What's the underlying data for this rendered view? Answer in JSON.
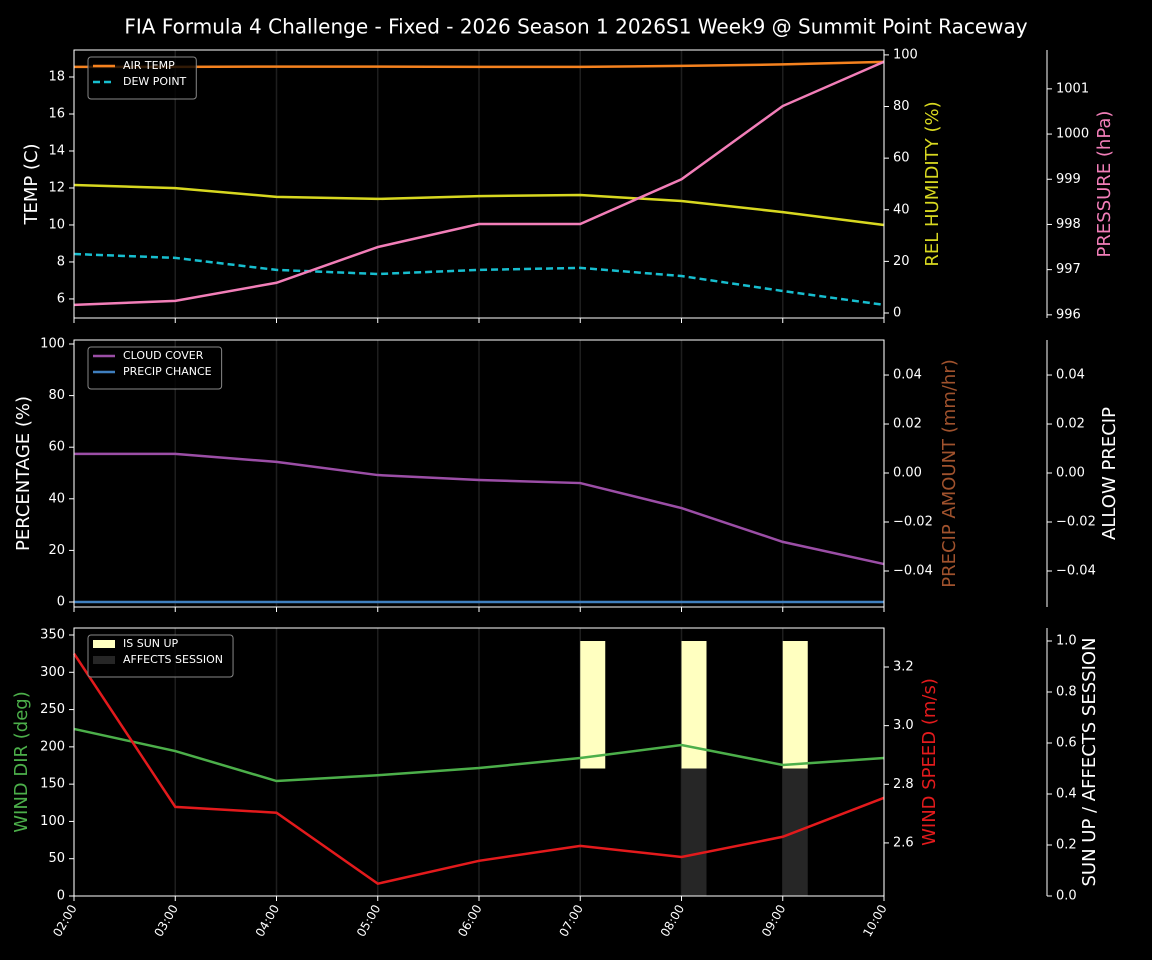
{
  "title": "FIA Formula 4 Challenge - Fixed - 2026 Season 1 2026S1 Week9 @ Summit Point Raceway",
  "chart_data": [
    {
      "type": "line",
      "legend": "upper left",
      "xgrid": true,
      "ylabel": "TEMP (C)",
      "ylabel_color": "#ffffff",
      "ylim": [
        4.97,
        19.46
      ],
      "yticks": [
        6,
        8,
        10,
        12,
        14,
        16,
        18
      ],
      "y2label": "REL HUMIDITY (%)",
      "y2label_color": "#d8d820",
      "y2lim": [
        -1.94,
        101.9
      ],
      "y2ticks": [
        0,
        20,
        40,
        60,
        80,
        100
      ],
      "y3label": "PRESSURE (hPa)",
      "y3label_color": "#f27eb8",
      "y3lim": [
        995.93,
        1001.86
      ],
      "y3ticks": [
        996,
        997,
        998,
        999,
        1000,
        1001
      ],
      "series": [
        {
          "name": "AIR TEMP",
          "color": "#f5821f",
          "linestyle": "solid",
          "values": [
            18.55,
            18.55,
            18.56,
            18.56,
            18.55,
            18.55,
            18.6,
            18.68,
            18.82
          ]
        },
        {
          "name": "DEW POINT",
          "color": "#17becf",
          "linestyle": "dashed",
          "values": [
            8.43,
            8.22,
            7.57,
            7.35,
            7.57,
            7.68,
            7.24,
            6.43,
            5.68
          ]
        },
        {
          "color": "#d8d820",
          "linestyle": "solid",
          "axis": "y2",
          "values": [
            49.6,
            48.4,
            45.0,
            44.2,
            45.3,
            45.7,
            43.4,
            39.1,
            34.1
          ]
        },
        {
          "color": "#f27eb8",
          "linestyle": "solid",
          "axis": "y3",
          "values": [
            996.22,
            996.31,
            996.71,
            997.5,
            998.01,
            998.01,
            999.0,
            1000.62,
            1001.6
          ]
        }
      ]
    },
    {
      "type": "line",
      "legend": "upper left",
      "xgrid": true,
      "ylabel": "PERCENTAGE (%)",
      "ylabel_color": "#ffffff",
      "ylim": [
        -1.94,
        101.55
      ],
      "yticks": [
        0,
        20,
        40,
        60,
        80,
        100
      ],
      "y2label": "PRECIP AMOUNT (mm/hr)",
      "y2label_color": "#a0522d",
      "y2lim": [
        -0.0547,
        0.0543
      ],
      "y2ticks": [
        {
          "value": -0.04,
          "label": "−0.04"
        },
        {
          "value": -0.02,
          "label": "−0.02"
        },
        {
          "value": 0,
          "label": "0.00"
        },
        0.02,
        0.04
      ],
      "y3label": "ALLOW PRECIP",
      "y3label_color": "#ffffff",
      "y3lim": [
        -0.0547,
        0.0543
      ],
      "y3ticks": [
        {
          "value": -0.04,
          "label": "−0.04"
        },
        {
          "value": -0.02,
          "label": "−0.02"
        },
        {
          "value": 0,
          "label": "0.00"
        },
        0.02,
        0.04
      ],
      "series": [
        {
          "name": "CLOUD COVER",
          "color": "#9b4ea6",
          "linestyle": "solid",
          "values": [
            57.4,
            57.4,
            54.3,
            49.2,
            47.3,
            46.1,
            36.4,
            23.3,
            14.7
          ]
        },
        {
          "name": "PRECIP CHANCE",
          "color": "#3f7fbf",
          "linestyle": "solid",
          "values": [
            0,
            0,
            0,
            0,
            0,
            0,
            0,
            0,
            0
          ]
        }
      ]
    },
    {
      "type": "combo",
      "legend": "upper left",
      "xgrid": true,
      "categories": [
        "02:00",
        "03:00",
        "04:00",
        "05:00",
        "06:00",
        "07:00",
        "08:00",
        "09:00",
        "10:00"
      ],
      "ylabel": "WIND DIR (deg)",
      "ylabel_color": "#4caf4a",
      "ylim": [
        0,
        359.4
      ],
      "yticks": [
        0,
        50,
        100,
        150,
        200,
        250,
        300,
        350
      ],
      "y2label": "WIND SPEED (m/s)",
      "y2label_color": "#e31a1c",
      "y2lim": [
        2.419,
        3.333
      ],
      "y2ticks": [
        2.6,
        2.8,
        {
          "value": 3,
          "label": "3.0"
        },
        3.2
      ],
      "y3label": "SUN UP / AFFECTS SESSION",
      "y3label_color": "#ffffff",
      "y3lim": [
        0,
        1.051
      ],
      "y3ticks": [
        {
          "value": 0,
          "label": "0.0"
        },
        0.2,
        0.4,
        0.6,
        0.8,
        {
          "value": 1,
          "label": "1.0"
        }
      ],
      "series": [
        {
          "name": "IS SUN UP",
          "type": "bar",
          "color": "#ffffc0",
          "axis": "y3",
          "bottom": 0.5,
          "values": [
            0,
            0,
            0,
            0,
            0,
            0.5,
            0.5,
            0.5,
            0
          ]
        },
        {
          "name": "AFFECTS SESSION",
          "type": "bar",
          "color": "#262626",
          "axis": "y3",
          "bottom": 0,
          "values": [
            0,
            0,
            0,
            0,
            0,
            0,
            0.5,
            0.5,
            0
          ]
        },
        {
          "type": "line",
          "color": "#4caf4a",
          "linestyle": "solid",
          "values": [
            224,
            194.4,
            154.2,
            162,
            171.6,
            185,
            202.5,
            175.7,
            185
          ]
        },
        {
          "type": "line",
          "color": "#e31a1c",
          "linestyle": "solid",
          "axis": "y2",
          "values": [
            3.246,
            2.723,
            2.703,
            2.461,
            2.539,
            2.59,
            2.552,
            2.621,
            2.754
          ]
        }
      ]
    }
  ]
}
